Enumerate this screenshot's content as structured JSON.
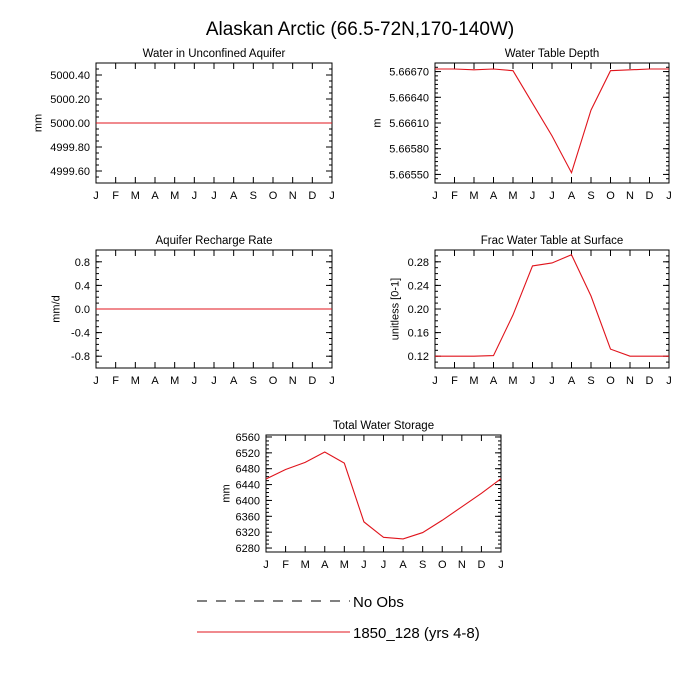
{
  "figure": {
    "title": "Alaskan Arctic (66.5-72N,170-140W)"
  },
  "month_labels": [
    "J",
    "F",
    "M",
    "A",
    "M",
    "J",
    "J",
    "A",
    "S",
    "O",
    "N",
    "D",
    "J"
  ],
  "series_color": "#e0141c",
  "legend": [
    {
      "label": "No Obs",
      "style": "dashed",
      "color": "#000000"
    },
    {
      "label": "1850_128 (yrs 4-8)",
      "style": "solid",
      "color": "#e0141c"
    }
  ],
  "chart_data": [
    {
      "id": "p1",
      "type": "line",
      "title": "Water in Unconfined Aquifer",
      "ylabel": "mm",
      "ylim": [
        4999.5,
        5000.5
      ],
      "yticks": [
        4999.6,
        4999.8,
        5000.0,
        5000.2,
        5000.4
      ],
      "ytick_labels": [
        "4999.60",
        "4999.80",
        "5000.00",
        "5000.20",
        "5000.40"
      ],
      "minor_step": 0.05,
      "x": [
        1,
        2,
        3,
        4,
        5,
        6,
        7,
        8,
        9,
        10,
        11,
        12,
        13
      ],
      "values": [
        5000,
        5000,
        5000,
        5000,
        5000,
        5000,
        5000,
        5000,
        5000,
        5000,
        5000,
        5000,
        5000
      ]
    },
    {
      "id": "p2",
      "type": "line",
      "title": "Water Table Depth",
      "ylabel": "m",
      "ylim": [
        5.6654,
        5.6668
      ],
      "yticks": [
        5.6655,
        5.6658,
        5.6661,
        5.6664,
        5.6667
      ],
      "ytick_labels": [
        "5.66550",
        "5.66580",
        "5.66610",
        "5.66640",
        "5.66670"
      ],
      "minor_step": 5e-05,
      "x": [
        1,
        2,
        3,
        4,
        5,
        6,
        7,
        8,
        9,
        10,
        11,
        12,
        13
      ],
      "values": [
        5.66673,
        5.66673,
        5.66672,
        5.66673,
        5.66671,
        5.66633,
        5.66595,
        5.66552,
        5.66625,
        5.66671,
        5.66672,
        5.66673,
        5.66673
      ]
    },
    {
      "id": "p3",
      "type": "line",
      "title": "Aquifer Recharge Rate",
      "ylabel": "mm/d",
      "ylim": [
        -1.0,
        1.0
      ],
      "yticks": [
        -0.8,
        -0.4,
        0.0,
        0.4,
        0.8
      ],
      "ytick_labels": [
        "-0.8",
        "-0.4",
        "0.0",
        "0.4",
        "0.8"
      ],
      "minor_step": 0.1,
      "x": [
        1,
        2,
        3,
        4,
        5,
        6,
        7,
        8,
        9,
        10,
        11,
        12,
        13
      ],
      "values": [
        0,
        0,
        0,
        0,
        0,
        0,
        0,
        0,
        0,
        0,
        0,
        0,
        0
      ]
    },
    {
      "id": "p4",
      "type": "line",
      "title": "Frac Water Table at Surface",
      "ylabel": "unitless [0-1]",
      "ylim": [
        0.1,
        0.3
      ],
      "yticks": [
        0.12,
        0.16,
        0.2,
        0.24,
        0.28
      ],
      "ytick_labels": [
        "0.12",
        "0.16",
        "0.20",
        "0.24",
        "0.28"
      ],
      "minor_step": 0.01,
      "x": [
        1,
        2,
        3,
        4,
        5,
        6,
        7,
        8,
        9,
        10,
        11,
        12,
        13
      ],
      "values": [
        0.12,
        0.12,
        0.12,
        0.121,
        0.19,
        0.273,
        0.278,
        0.292,
        0.222,
        0.132,
        0.12,
        0.12,
        0.12
      ]
    },
    {
      "id": "p5",
      "type": "line",
      "title": "Total Water Storage",
      "ylabel": "mm",
      "ylim": [
        6270,
        6565
      ],
      "yticks": [
        6280,
        6320,
        6360,
        6400,
        6440,
        6480,
        6520,
        6560
      ],
      "ytick_labels": [
        "6280",
        "6320",
        "6360",
        "6400",
        "6440",
        "6480",
        "6520",
        "6560"
      ],
      "minor_step": 10,
      "x": [
        1,
        2,
        3,
        4,
        5,
        6,
        7,
        8,
        9,
        10,
        11,
        12,
        13
      ],
      "values": [
        6454,
        6478,
        6496,
        6522,
        6494,
        6346,
        6307,
        6303,
        6319,
        6350,
        6384,
        6418,
        6455
      ]
    }
  ]
}
